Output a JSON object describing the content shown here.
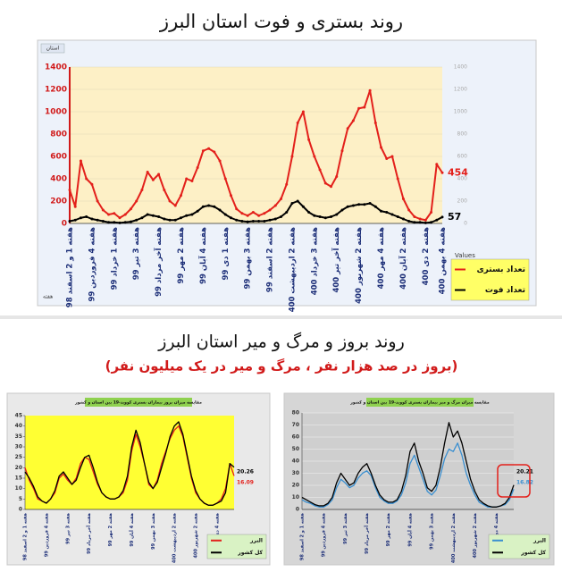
{
  "chart_data": [
    {
      "type": "line",
      "title": "روند بستری و فوت استان البرز",
      "filter_label": "استان",
      "x_field_label": "هفته",
      "legend_title": "Values",
      "categories": [
        "هفته 1 و 2 اسفند 98",
        null,
        null,
        null,
        "هفته 4 فروردین 99",
        null,
        null,
        null,
        "هفته 1 خرداد 99",
        null,
        null,
        null,
        "هفته 3 تیر 99",
        null,
        null,
        null,
        "هفته آخر مرداد 99",
        null,
        null,
        null,
        "هفته 2 مهر 99",
        null,
        null,
        null,
        "هفته 4 آبان 99",
        null,
        null,
        null,
        "هفته 1 دی 99",
        null,
        null,
        null,
        "هفته 3 بهمن 99",
        null,
        null,
        null,
        "هفته 2 اسفند 99",
        null,
        null,
        null,
        "هفته 2 اردیبهشت 400",
        null,
        null,
        null,
        "هفته 3 خرداد 400",
        null,
        null,
        null,
        "هفته آخر تیر 400",
        null,
        null,
        null,
        "هفته 2 شهریور 400",
        null,
        null,
        null,
        "هفته 4 مهر 400",
        null,
        null,
        null,
        "هفته 2 آبان 400",
        null,
        null,
        null,
        "هفته 2 دی 400",
        null,
        null,
        "هفته 4 بهمن 400"
      ],
      "series": [
        {
          "name": "تعداد بستری",
          "color": "#e3201b",
          "values": [
            300,
            150,
            560,
            400,
            350,
            200,
            120,
            80,
            90,
            50,
            80,
            130,
            200,
            300,
            460,
            390,
            440,
            300,
            200,
            160,
            250,
            400,
            380,
            500,
            650,
            670,
            640,
            560,
            400,
            250,
            130,
            90,
            70,
            100,
            70,
            90,
            120,
            160,
            220,
            350,
            600,
            900,
            1000,
            750,
            600,
            480,
            360,
            330,
            420,
            650,
            850,
            920,
            1030,
            1040,
            1190,
            900,
            680,
            580,
            600,
            400,
            220,
            120,
            60,
            40,
            30,
            100,
            530,
            454
          ]
        },
        {
          "name": "تعداد فوت",
          "color": "#000000",
          "values": [
            20,
            30,
            50,
            60,
            40,
            30,
            20,
            10,
            10,
            5,
            10,
            15,
            30,
            50,
            80,
            70,
            60,
            40,
            30,
            30,
            50,
            70,
            80,
            110,
            150,
            160,
            150,
            120,
            80,
            50,
            30,
            20,
            15,
            20,
            20,
            20,
            30,
            40,
            60,
            100,
            180,
            200,
            150,
            100,
            70,
            60,
            50,
            60,
            80,
            120,
            150,
            160,
            170,
            170,
            180,
            150,
            110,
            100,
            80,
            60,
            40,
            20,
            10,
            10,
            5,
            10,
            30,
            57
          ]
        }
      ],
      "ylim": [
        0,
        1400
      ],
      "yticks": [
        0,
        200,
        400,
        600,
        800,
        1000,
        1200,
        1400
      ],
      "grid": true
    },
    {
      "type": "line",
      "title": "مقایسه میزان بروز بیماران بستری کووید-19 بین استان و کشور",
      "categories": [
        "هفته 1 و 2 اسفند 98",
        null,
        null,
        null,
        null,
        "هفته 4 فروردین 99",
        null,
        null,
        null,
        null,
        "هفته 3 تیر 99",
        null,
        null,
        null,
        null,
        "هفته آخر مرداد 99",
        null,
        null,
        null,
        null,
        "هفته 2 مهر 99",
        null,
        null,
        null,
        null,
        "هفته 4 آبان 99",
        null,
        null,
        null,
        null,
        "هفته 3 بهمن 99",
        null,
        null,
        null,
        null,
        "هفته 2 اردیبهشت 400",
        null,
        null,
        null,
        null,
        "هفته 2 شهریور 400",
        null,
        null,
        null,
        null,
        "هفته 4 دی 400",
        null,
        null,
        null,
        null
      ],
      "series": [
        {
          "name": "البرز",
          "color": "#e3201b",
          "values": [
            20,
            14,
            10,
            5,
            4,
            3,
            5,
            8,
            15,
            17,
            14,
            12,
            15,
            22,
            25,
            24,
            18,
            12,
            8,
            6,
            5,
            5,
            6,
            8,
            14,
            28,
            36,
            30,
            22,
            12,
            10,
            14,
            22,
            28,
            34,
            38,
            40,
            35,
            25,
            15,
            8,
            5,
            3,
            2,
            2,
            3,
            5,
            10,
            22,
            16.09
          ]
        },
        {
          "name": "کل کشور",
          "color": "#000000",
          "values": [
            18,
            15,
            11,
            6,
            4,
            3,
            5,
            9,
            16,
            18,
            15,
            12,
            14,
            20,
            25,
            26,
            20,
            13,
            8,
            6,
            5,
            5,
            6,
            9,
            16,
            30,
            38,
            32,
            22,
            13,
            10,
            13,
            20,
            27,
            35,
            40,
            42,
            36,
            26,
            16,
            9,
            5,
            3,
            2,
            2,
            3,
            4,
            8,
            22,
            20.26
          ]
        }
      ],
      "ylim": [
        0,
        45
      ],
      "yticks": [
        0,
        5,
        10,
        15,
        20,
        25,
        30,
        35,
        40,
        45
      ],
      "grid": false
    },
    {
      "type": "line",
      "title": "مقایسه میزان مرگ و میر بیماران بستری کووید-19 بین استان و کشور",
      "categories": [
        "هفته 1 و 2 اسفند 98",
        null,
        null,
        null,
        null,
        "هفته 4 فروردین 99",
        null,
        null,
        null,
        null,
        "هفته 3 تیر 99",
        null,
        null,
        null,
        null,
        "هفته آخر مرداد 99",
        null,
        null,
        null,
        null,
        "هفته 2 مهر 99",
        null,
        null,
        null,
        null,
        "هفته 4 آبان 99",
        null,
        null,
        null,
        null,
        "هفته 3 بهمن 99",
        null,
        null,
        null,
        null,
        "هفته 2 اردیبهشت 400",
        null,
        null,
        null,
        null,
        "هفته 2 شهریور 400",
        null,
        null,
        null,
        null,
        "هفته 4 دی 400",
        null,
        null,
        null,
        null
      ],
      "series": [
        {
          "name": "البرز",
          "color": "#3a8fd0",
          "values": [
            8,
            6,
            5,
            3,
            2,
            2,
            4,
            8,
            18,
            25,
            22,
            18,
            20,
            26,
            30,
            32,
            28,
            18,
            10,
            7,
            5,
            5,
            7,
            12,
            22,
            38,
            45,
            35,
            25,
            15,
            12,
            16,
            28,
            42,
            50,
            48,
            55,
            45,
            30,
            20,
            12,
            6,
            4,
            2,
            2,
            2,
            3,
            4,
            8,
            16.82
          ]
        },
        {
          "name": "کل کشور",
          "color": "#000000",
          "values": [
            10,
            8,
            6,
            4,
            3,
            3,
            5,
            10,
            22,
            30,
            25,
            20,
            22,
            30,
            35,
            38,
            30,
            20,
            12,
            8,
            6,
            6,
            8,
            15,
            28,
            48,
            55,
            40,
            30,
            18,
            15,
            20,
            35,
            55,
            72,
            60,
            65,
            55,
            40,
            25,
            15,
            8,
            5,
            3,
            2,
            2,
            3,
            5,
            10,
            20.21
          ]
        }
      ],
      "ylim": [
        0,
        80
      ],
      "yticks": [
        0,
        10,
        20,
        30,
        40,
        50,
        60,
        70,
        80
      ],
      "grid": true
    }
  ],
  "section_2": {
    "title": "روند بروز و مرگ و میر استان البرز",
    "subtitle": "(بروز در صد هزار نفر ، مرگ و میر در یک میلیون نفر)"
  }
}
